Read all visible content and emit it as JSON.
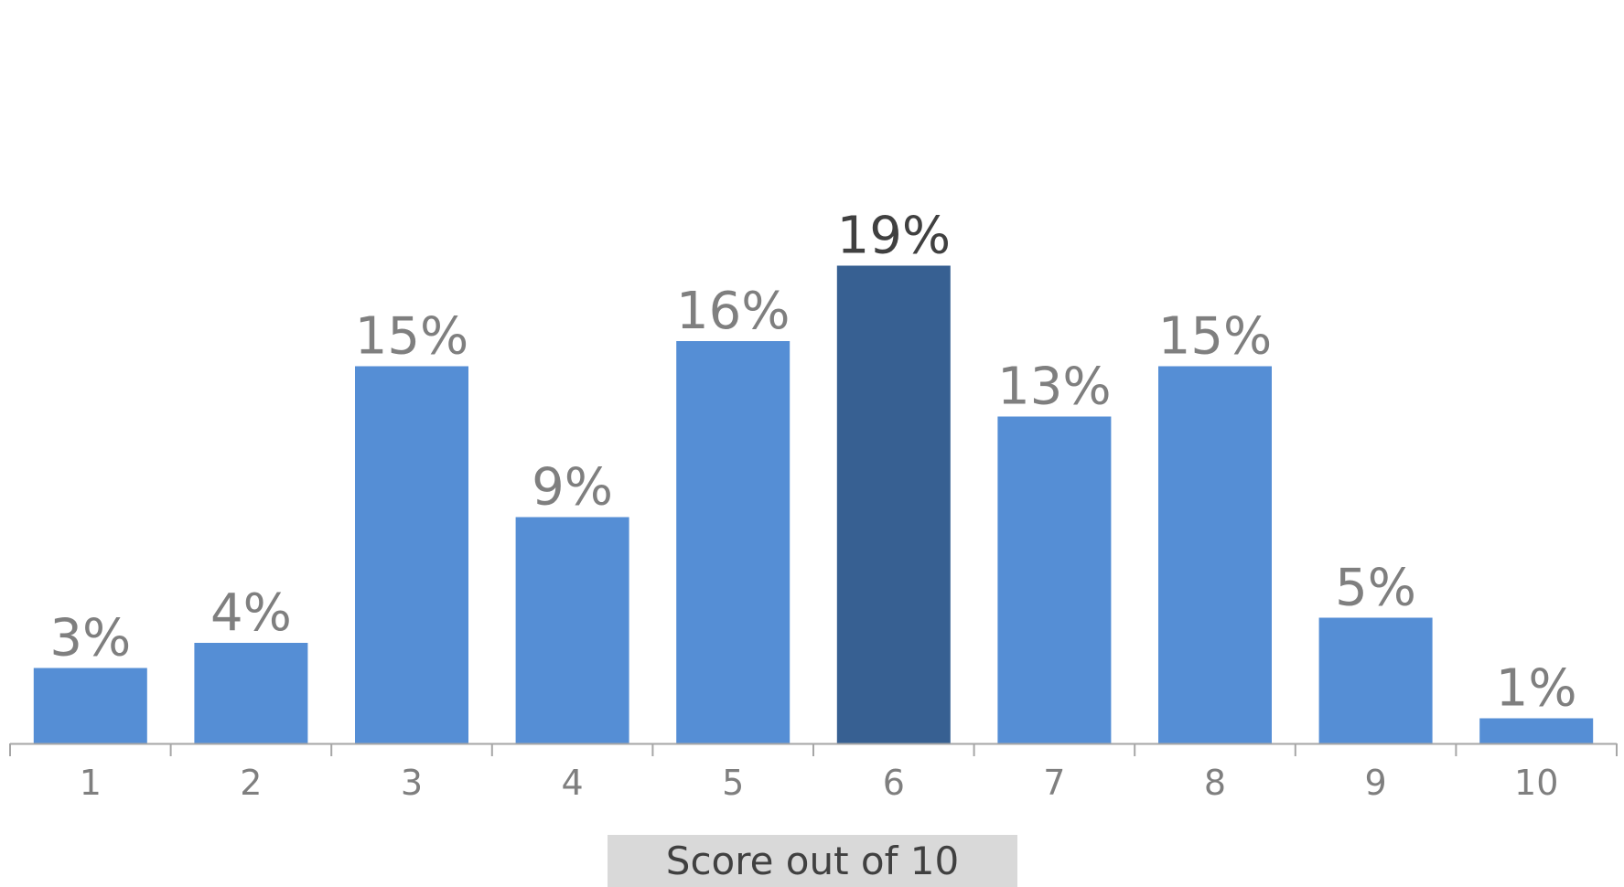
{
  "chart_data": {
    "type": "bar",
    "categories": [
      "1",
      "2",
      "3",
      "4",
      "5",
      "6",
      "7",
      "8",
      "9",
      "10"
    ],
    "values": [
      3,
      4,
      15,
      9,
      16,
      19,
      13,
      15,
      5,
      1
    ],
    "value_labels": [
      "3%",
      "4%",
      "15%",
      "9%",
      "16%",
      "19%",
      "13%",
      "15%",
      "5%",
      "1%"
    ],
    "highlight_category": "6",
    "title": "",
    "xlabel": "Score out of 10",
    "ylabel": "",
    "ylim": [
      0,
      20
    ],
    "grid": false,
    "legend": "none",
    "colors": {
      "bar": "#558ed5",
      "highlight_bar": "#376092",
      "axis": "#a6a6a6",
      "label": "#7f7f7f",
      "highlight_label": "#404040",
      "xlabel_background": "#d9d9d9"
    }
  }
}
